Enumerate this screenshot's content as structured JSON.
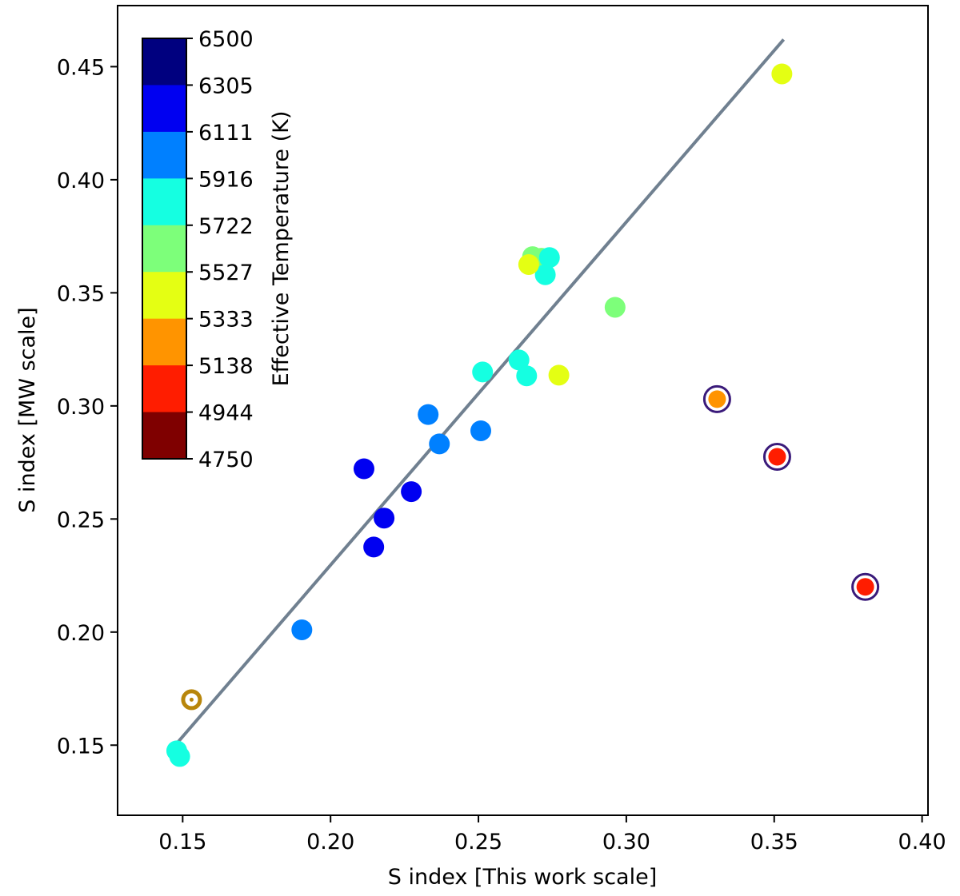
{
  "chart_data": {
    "type": "scatter",
    "xlabel": "S index [This work scale]",
    "ylabel": "S index [MW scale]",
    "xlim": [
      0.128,
      0.402
    ],
    "ylim": [
      0.119,
      0.477
    ],
    "xticks": [
      "0.15",
      "0.20",
      "0.25",
      "0.30",
      "0.35",
      "0.40"
    ],
    "yticks": [
      "0.15",
      "0.20",
      "0.25",
      "0.30",
      "0.35",
      "0.40",
      "0.45"
    ],
    "grid": false,
    "fit_line": {
      "color": "#708090",
      "x": [
        0.1477,
        0.3532
      ],
      "y": [
        0.1503,
        0.462
      ]
    },
    "colorbar": {
      "label": "Effective Temperature (K)",
      "placement": "top-left",
      "ticks": [
        "6500",
        "6305",
        "6111",
        "5916",
        "5722",
        "5527",
        "5333",
        "5138",
        "4944",
        "4750"
      ],
      "colors": [
        "#00007f",
        "#0000f1",
        "#0080ff",
        "#15ffe1",
        "#7dff7a",
        "#e4ff13",
        "#ff9400",
        "#ff1d00",
        "#7f0000"
      ]
    },
    "points": [
      {
        "x": 0.148,
        "y": 0.1475,
        "color": "#15ffe1"
      },
      {
        "x": 0.149,
        "y": 0.145,
        "color": "#15ffe1"
      },
      {
        "x": 0.1903,
        "y": 0.201,
        "color": "#0080ff"
      },
      {
        "x": 0.2113,
        "y": 0.2722,
        "color": "#0000f1"
      },
      {
        "x": 0.2146,
        "y": 0.2376,
        "color": "#0000f1"
      },
      {
        "x": 0.2181,
        "y": 0.2504,
        "color": "#0000f1"
      },
      {
        "x": 0.2273,
        "y": 0.2621,
        "color": "#0000f1"
      },
      {
        "x": 0.233,
        "y": 0.2962,
        "color": "#0080ff"
      },
      {
        "x": 0.2368,
        "y": 0.2832,
        "color": "#0080ff"
      },
      {
        "x": 0.2508,
        "y": 0.289,
        "color": "#0080ff"
      },
      {
        "x": 0.2514,
        "y": 0.315,
        "color": "#15ffe1"
      },
      {
        "x": 0.2637,
        "y": 0.3203,
        "color": "#15ffe1"
      },
      {
        "x": 0.2663,
        "y": 0.3133,
        "color": "#15ffe1"
      },
      {
        "x": 0.2683,
        "y": 0.366,
        "color": "#7dff7a"
      },
      {
        "x": 0.2713,
        "y": 0.3653,
        "color": "#7dff7a"
      },
      {
        "x": 0.274,
        "y": 0.3656,
        "color": "#15ffe1"
      },
      {
        "x": 0.2726,
        "y": 0.358,
        "color": "#15ffe1"
      },
      {
        "x": 0.267,
        "y": 0.3625,
        "color": "#e4ff13"
      },
      {
        "x": 0.2772,
        "y": 0.3136,
        "color": "#e4ff13"
      },
      {
        "x": 0.2962,
        "y": 0.3436,
        "color": "#7dff7a"
      },
      {
        "x": 0.3526,
        "y": 0.4468,
        "color": "#e4ff13"
      },
      {
        "x": 0.3307,
        "y": 0.303,
        "color": "#ff9400",
        "ringed": true
      },
      {
        "x": 0.351,
        "y": 0.2775,
        "color": "#ff1d00",
        "ringed": true
      },
      {
        "x": 0.3808,
        "y": 0.22,
        "color": "#ff1d00",
        "ringed": true
      }
    ],
    "sun": {
      "x": 0.153,
      "y": 0.1701,
      "color": "#b8860b"
    }
  }
}
